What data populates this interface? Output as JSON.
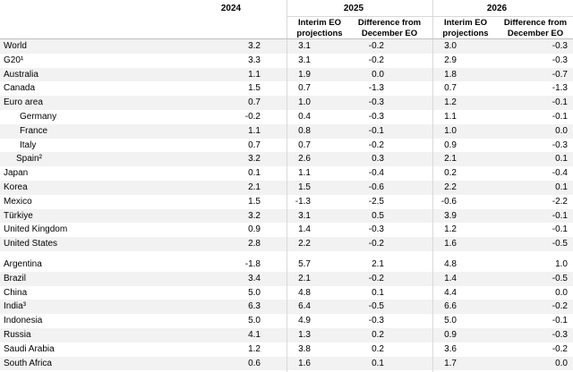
{
  "header": {
    "years": [
      "2024",
      "2025",
      "2026"
    ],
    "subheaders": [
      "Interim EO projections",
      "Difference from December EO",
      "Interim EO projections",
      "Difference from December EO"
    ]
  },
  "table": {
    "groups": [
      [
        [
          "World",
          "3.2",
          "3.1",
          "-0.2",
          "3.0",
          "-0.3"
        ],
        [
          "G20¹",
          "3.3",
          "3.1",
          "-0.2",
          "2.9",
          "-0.3"
        ],
        [
          "Australia",
          "1.1",
          "1.9",
          "0.0",
          "1.8",
          "-0.7"
        ],
        [
          "Canada",
          "1.5",
          "0.7",
          "-1.3",
          "0.7",
          "-1.3"
        ],
        [
          "Euro area",
          "0.7",
          "1.0",
          "-0.3",
          "1.2",
          "-0.1"
        ],
        [
          "Germany",
          "-0.2",
          "0.4",
          "-0.3",
          "1.1",
          "-0.1"
        ],
        [
          "France",
          "1.1",
          "0.8",
          "-0.1",
          "1.0",
          "0.0"
        ],
        [
          "Italy",
          "0.7",
          "0.7",
          "-0.2",
          "0.9",
          "-0.3"
        ],
        [
          "Spain²",
          "3.2",
          "2.6",
          "0.3",
          "2.1",
          "0.1"
        ],
        [
          "Japan",
          "0.1",
          "1.1",
          "-0.4",
          "0.2",
          "-0.4"
        ],
        [
          "Korea",
          "2.1",
          "1.5",
          "-0.6",
          "2.2",
          "0.1"
        ],
        [
          "Mexico",
          "1.5",
          "-1.3",
          "-2.5",
          "-0.6",
          "-2.2"
        ],
        [
          "Türkiye",
          "3.2",
          "3.1",
          "0.5",
          "3.9",
          "-0.1"
        ],
        [
          "United Kingdom",
          "0.9",
          "1.4",
          "-0.3",
          "1.2",
          "-0.1"
        ],
        [
          "United States",
          "2.8",
          "2.2",
          "-0.2",
          "1.6",
          "-0.5"
        ]
      ],
      [
        [
          "Argentina",
          "-1.8",
          "5.7",
          "2.1",
          "4.8",
          "1.0"
        ],
        [
          "Brazil",
          "3.4",
          "2.1",
          "-0.2",
          "1.4",
          "-0.5"
        ],
        [
          "China",
          "5.0",
          "4.8",
          "0.1",
          "4.4",
          "0.0"
        ],
        [
          "India³",
          "6.3",
          "6.4",
          "-0.5",
          "6.6",
          "-0.2"
        ],
        [
          "Indonesia",
          "5.0",
          "4.9",
          "-0.3",
          "5.0",
          "-0.1"
        ],
        [
          "Russia",
          "4.1",
          "1.3",
          "0.2",
          "0.9",
          "-0.3"
        ],
        [
          "Saudi Arabia",
          "1.2",
          "3.8",
          "0.2",
          "3.6",
          "-0.2"
        ],
        [
          "South Africa",
          "0.6",
          "1.6",
          "0.1",
          "1.7",
          "0.0"
        ]
      ]
    ]
  }
}
